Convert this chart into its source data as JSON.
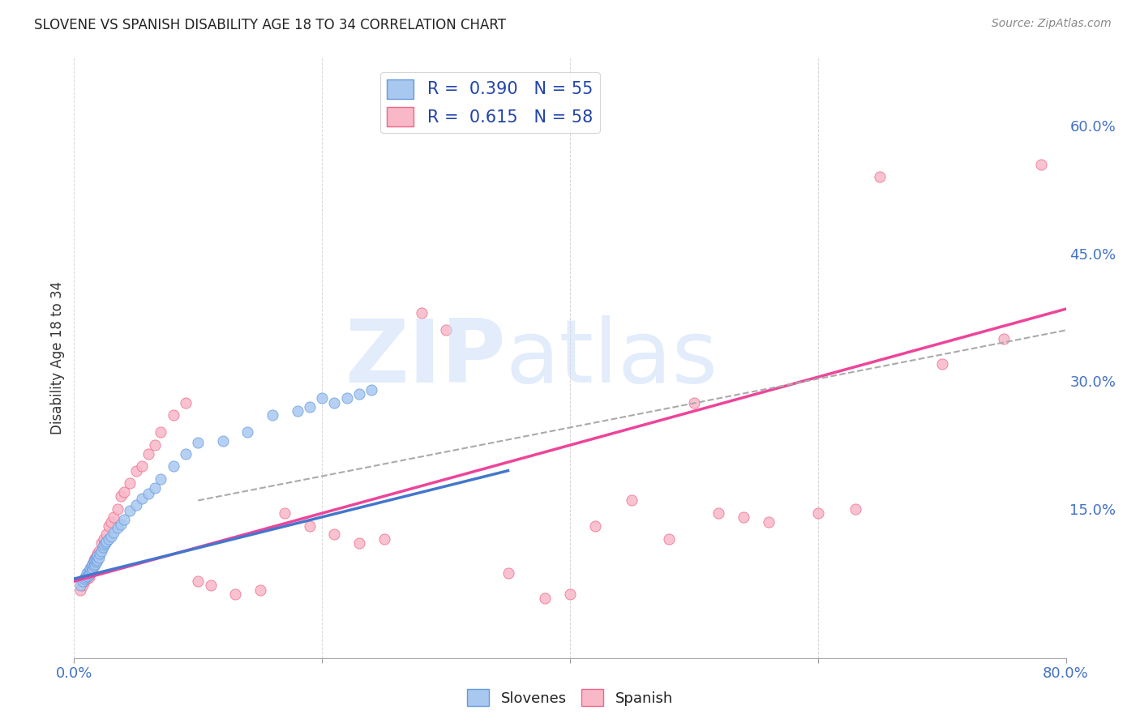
{
  "title": "SLOVENE VS SPANISH DISABILITY AGE 18 TO 34 CORRELATION CHART",
  "source": "Source: ZipAtlas.com",
  "ylabel": "Disability Age 18 to 34",
  "xlim": [
    0.0,
    0.8
  ],
  "ylim": [
    -0.025,
    0.68
  ],
  "yticks_right": [
    0.15,
    0.3,
    0.45,
    0.6
  ],
  "ytick_labels_right": [
    "15.0%",
    "30.0%",
    "45.0%",
    "60.0%"
  ],
  "legend_r_blue": "0.390",
  "legend_n_blue": "55",
  "legend_r_pink": "0.615",
  "legend_n_pink": "58",
  "blue_scatter_color": "#A8C8F0",
  "blue_edge_color": "#6699DD",
  "pink_scatter_color": "#F8B8C8",
  "pink_edge_color": "#EE6688",
  "blue_line_color": "#4477CC",
  "pink_line_color": "#EE4499",
  "dash_line_color": "#AAAAAA",
  "grid_color": "#CCCCCC",
  "bg_color": "#FFFFFF",
  "tick_color": "#4472C4",
  "slovene_x": [
    0.005,
    0.007,
    0.008,
    0.009,
    0.01,
    0.01,
    0.011,
    0.012,
    0.012,
    0.013,
    0.013,
    0.014,
    0.014,
    0.015,
    0.015,
    0.016,
    0.016,
    0.017,
    0.017,
    0.018,
    0.018,
    0.019,
    0.019,
    0.02,
    0.021,
    0.022,
    0.023,
    0.024,
    0.025,
    0.026,
    0.028,
    0.03,
    0.032,
    0.035,
    0.038,
    0.04,
    0.045,
    0.05,
    0.055,
    0.06,
    0.065,
    0.07,
    0.08,
    0.09,
    0.1,
    0.12,
    0.14,
    0.16,
    0.18,
    0.19,
    0.2,
    0.21,
    0.22,
    0.23,
    0.24
  ],
  "slovene_y": [
    0.06,
    0.065,
    0.068,
    0.07,
    0.072,
    0.075,
    0.071,
    0.073,
    0.078,
    0.075,
    0.08,
    0.078,
    0.082,
    0.08,
    0.085,
    0.083,
    0.088,
    0.085,
    0.09,
    0.088,
    0.092,
    0.09,
    0.095,
    0.093,
    0.098,
    0.1,
    0.105,
    0.108,
    0.11,
    0.112,
    0.115,
    0.118,
    0.122,
    0.128,
    0.132,
    0.138,
    0.148,
    0.155,
    0.162,
    0.168,
    0.175,
    0.185,
    0.2,
    0.215,
    0.228,
    0.23,
    0.24,
    0.26,
    0.265,
    0.27,
    0.28,
    0.275,
    0.28,
    0.285,
    0.29
  ],
  "spanish_x": [
    0.005,
    0.007,
    0.008,
    0.01,
    0.011,
    0.012,
    0.013,
    0.014,
    0.015,
    0.016,
    0.017,
    0.018,
    0.019,
    0.02,
    0.022,
    0.024,
    0.026,
    0.028,
    0.03,
    0.032,
    0.035,
    0.038,
    0.04,
    0.045,
    0.05,
    0.055,
    0.06,
    0.065,
    0.07,
    0.08,
    0.09,
    0.1,
    0.11,
    0.13,
    0.15,
    0.17,
    0.19,
    0.21,
    0.23,
    0.25,
    0.28,
    0.3,
    0.35,
    0.38,
    0.4,
    0.42,
    0.45,
    0.48,
    0.5,
    0.52,
    0.54,
    0.56,
    0.6,
    0.63,
    0.65,
    0.7,
    0.75,
    0.78
  ],
  "spanish_y": [
    0.055,
    0.06,
    0.065,
    0.068,
    0.072,
    0.07,
    0.075,
    0.08,
    0.085,
    0.09,
    0.092,
    0.095,
    0.098,
    0.1,
    0.11,
    0.115,
    0.12,
    0.13,
    0.135,
    0.14,
    0.15,
    0.165,
    0.17,
    0.18,
    0.195,
    0.2,
    0.215,
    0.225,
    0.24,
    0.26,
    0.275,
    0.065,
    0.06,
    0.05,
    0.055,
    0.145,
    0.13,
    0.12,
    0.11,
    0.115,
    0.38,
    0.36,
    0.075,
    0.045,
    0.05,
    0.13,
    0.16,
    0.115,
    0.275,
    0.145,
    0.14,
    0.135,
    0.145,
    0.15,
    0.54,
    0.32,
    0.35,
    0.555
  ],
  "blue_line_x": [
    0.0,
    0.35
  ],
  "blue_line_y": [
    0.068,
    0.195
  ],
  "pink_line_x": [
    0.0,
    0.8
  ],
  "pink_line_y": [
    0.065,
    0.385
  ],
  "dash_line_x": [
    0.1,
    0.8
  ],
  "dash_line_y": [
    0.16,
    0.36
  ]
}
